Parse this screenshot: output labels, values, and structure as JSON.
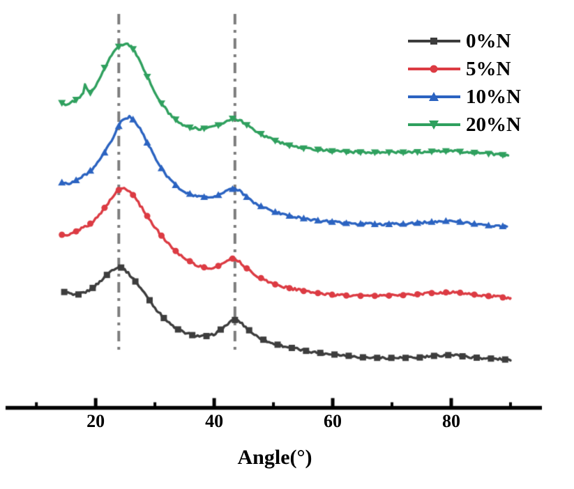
{
  "chart_data": {
    "type": "line",
    "title": "",
    "xlabel": "Angle(°)",
    "ylabel": "",
    "xlim": [
      4.8,
      95.3
    ],
    "ylim": [
      0,
      100
    ],
    "grid": false,
    "y_axis_visible": false,
    "background_color": "#ffffff",
    "axis_color": "#000000",
    "x_axis": {
      "major_ticks": [
        20,
        40,
        60,
        80
      ],
      "major_tick_labels": [
        "20",
        "40",
        "60",
        "80"
      ],
      "minor_ticks": [
        10,
        30,
        50,
        70,
        90
      ]
    },
    "reference_lines": [
      {
        "x": 23.9,
        "y_from": 14,
        "y_to": 100,
        "style": "dash-dot",
        "color": "#7d7d7d"
      },
      {
        "x": 43.5,
        "y_from": 14,
        "y_to": 100,
        "style": "dash-dot",
        "color": "#7d7d7d"
      }
    ],
    "legend": {
      "position": "upper-right",
      "entries": [
        "0%N",
        "5%N",
        "10%N",
        "20%N"
      ]
    },
    "noise_amplitude": 0.3,
    "marker_interval_deg": 2.4,
    "series": [
      {
        "name": "0%N",
        "color": "#3d3d3d",
        "marker": "square",
        "points": [
          [
            14.7,
            29.1
          ],
          [
            15.5,
            28.8
          ],
          [
            16.4,
            28.2
          ],
          [
            17.0,
            28.4
          ],
          [
            17.6,
            28.8
          ],
          [
            18.4,
            29.1
          ],
          [
            19.4,
            30.0
          ],
          [
            20.4,
            31.3
          ],
          [
            21.6,
            33.0
          ],
          [
            22.6,
            34.5
          ],
          [
            23.4,
            35.3
          ],
          [
            24.1,
            35.5
          ],
          [
            24.9,
            34.8
          ],
          [
            25.8,
            33.4
          ],
          [
            26.8,
            31.6
          ],
          [
            27.8,
            29.7
          ],
          [
            29.0,
            27.2
          ],
          [
            30.2,
            24.7
          ],
          [
            31.4,
            22.6
          ],
          [
            32.5,
            21.0
          ],
          [
            33.7,
            19.7
          ],
          [
            34.9,
            18.8
          ],
          [
            36.3,
            18.1
          ],
          [
            37.8,
            17.8
          ],
          [
            39.3,
            17.9
          ],
          [
            40.4,
            18.7
          ],
          [
            41.6,
            20.1
          ],
          [
            42.6,
            21.3
          ],
          [
            43.4,
            22.0
          ],
          [
            44.2,
            21.7
          ],
          [
            45.1,
            20.4
          ],
          [
            46.3,
            18.8
          ],
          [
            47.6,
            17.4
          ],
          [
            49.4,
            16.2
          ],
          [
            51.1,
            15.5
          ],
          [
            53.5,
            14.7
          ],
          [
            55.8,
            14.0
          ],
          [
            58.2,
            13.5
          ],
          [
            60.6,
            13.1
          ],
          [
            62.9,
            12.8
          ],
          [
            65.3,
            12.4
          ],
          [
            67.6,
            12.3
          ],
          [
            70.0,
            12.3
          ],
          [
            72.3,
            12.3
          ],
          [
            74.7,
            12.4
          ],
          [
            77.0,
            12.8
          ],
          [
            79.4,
            13.0
          ],
          [
            80.6,
            13.0
          ],
          [
            82.3,
            12.6
          ],
          [
            84.7,
            12.3
          ],
          [
            87.0,
            12.1
          ],
          [
            89.0,
            11.9
          ],
          [
            90.0,
            11.7
          ]
        ]
      },
      {
        "name": "5%N",
        "color": "#dc3b43",
        "marker": "circle",
        "points": [
          [
            14.3,
            43.7
          ],
          [
            15.1,
            43.3
          ],
          [
            15.9,
            43.9
          ],
          [
            17.0,
            44.8
          ],
          [
            17.8,
            45.5
          ],
          [
            18.8,
            46.2
          ],
          [
            19.7,
            47.2
          ],
          [
            20.8,
            49.0
          ],
          [
            21.7,
            51.0
          ],
          [
            22.6,
            52.8
          ],
          [
            23.4,
            54.4
          ],
          [
            24.1,
            55.4
          ],
          [
            24.9,
            55.6
          ],
          [
            25.7,
            54.9
          ],
          [
            26.6,
            53.3
          ],
          [
            27.5,
            51.2
          ],
          [
            28.6,
            48.7
          ],
          [
            29.6,
            46.4
          ],
          [
            30.8,
            44.0
          ],
          [
            32.0,
            41.9
          ],
          [
            33.1,
            40.1
          ],
          [
            34.3,
            38.5
          ],
          [
            35.5,
            37.3
          ],
          [
            36.7,
            36.2
          ],
          [
            37.8,
            35.5
          ],
          [
            39.0,
            35.2
          ],
          [
            40.2,
            35.3
          ],
          [
            41.1,
            36.1
          ],
          [
            42.1,
            37.1
          ],
          [
            42.8,
            37.7
          ],
          [
            43.5,
            37.5
          ],
          [
            44.4,
            36.6
          ],
          [
            45.6,
            35.0
          ],
          [
            47.0,
            33.4
          ],
          [
            48.7,
            32.0
          ],
          [
            50.5,
            30.9
          ],
          [
            52.9,
            30.0
          ],
          [
            55.2,
            29.3
          ],
          [
            57.6,
            28.8
          ],
          [
            59.9,
            28.4
          ],
          [
            62.3,
            28.2
          ],
          [
            64.6,
            28.1
          ],
          [
            67.6,
            28.1
          ],
          [
            70.5,
            28.2
          ],
          [
            73.5,
            28.4
          ],
          [
            76.4,
            28.8
          ],
          [
            79.4,
            29.0
          ],
          [
            81.1,
            29.0
          ],
          [
            82.9,
            28.6
          ],
          [
            85.3,
            28.2
          ],
          [
            87.6,
            27.9
          ],
          [
            90.0,
            27.5
          ]
        ]
      },
      {
        "name": "10%N",
        "color": "#2b63c1",
        "marker": "triangle-up",
        "points": [
          [
            14.3,
            57.0
          ],
          [
            15.2,
            56.7
          ],
          [
            16.2,
            57.2
          ],
          [
            17.1,
            57.9
          ],
          [
            18.1,
            58.8
          ],
          [
            19.0,
            59.9
          ],
          [
            20.0,
            61.3
          ],
          [
            20.9,
            63.1
          ],
          [
            21.8,
            65.4
          ],
          [
            22.8,
            68.0
          ],
          [
            23.6,
            70.5
          ],
          [
            24.3,
            72.6
          ],
          [
            25.0,
            73.5
          ],
          [
            25.7,
            73.7
          ],
          [
            26.4,
            73.0
          ],
          [
            27.3,
            71.2
          ],
          [
            28.2,
            68.6
          ],
          [
            29.3,
            65.5
          ],
          [
            30.3,
            62.5
          ],
          [
            31.5,
            59.7
          ],
          [
            32.7,
            57.5
          ],
          [
            33.8,
            55.9
          ],
          [
            35.0,
            54.7
          ],
          [
            36.4,
            53.8
          ],
          [
            37.8,
            53.3
          ],
          [
            39.3,
            53.3
          ],
          [
            40.4,
            53.6
          ],
          [
            41.6,
            54.5
          ],
          [
            42.6,
            55.2
          ],
          [
            43.3,
            55.4
          ],
          [
            44.1,
            55.1
          ],
          [
            45.1,
            53.8
          ],
          [
            46.4,
            52.2
          ],
          [
            48.1,
            50.8
          ],
          [
            49.8,
            49.7
          ],
          [
            52.2,
            48.7
          ],
          [
            54.5,
            48.0
          ],
          [
            56.9,
            47.4
          ],
          [
            59.2,
            47.1
          ],
          [
            61.6,
            46.7
          ],
          [
            63.9,
            46.5
          ],
          [
            66.9,
            46.4
          ],
          [
            69.9,
            46.4
          ],
          [
            72.8,
            46.5
          ],
          [
            75.8,
            46.9
          ],
          [
            78.7,
            47.2
          ],
          [
            80.2,
            47.2
          ],
          [
            82.0,
            46.9
          ],
          [
            84.3,
            46.4
          ],
          [
            86.7,
            46.0
          ],
          [
            89.4,
            45.8
          ]
        ]
      },
      {
        "name": "20%N",
        "color": "#2fa05e",
        "marker": "triangle-down",
        "points": [
          [
            14.3,
            77.3
          ],
          [
            15.1,
            76.9
          ],
          [
            15.9,
            77.4
          ],
          [
            16.8,
            78.2
          ],
          [
            17.5,
            78.9
          ],
          [
            18.0,
            79.9
          ],
          [
            18.2,
            82.2
          ],
          [
            18.6,
            80.3
          ],
          [
            19.1,
            79.9
          ],
          [
            19.9,
            81.3
          ],
          [
            20.6,
            83.5
          ],
          [
            21.4,
            86.0
          ],
          [
            22.2,
            88.3
          ],
          [
            23.0,
            90.2
          ],
          [
            23.7,
            91.5
          ],
          [
            24.6,
            92.2
          ],
          [
            25.3,
            92.4
          ],
          [
            26.0,
            91.7
          ],
          [
            26.8,
            89.9
          ],
          [
            27.7,
            87.0
          ],
          [
            28.8,
            83.7
          ],
          [
            29.8,
            80.5
          ],
          [
            31.0,
            77.4
          ],
          [
            32.2,
            75.0
          ],
          [
            33.4,
            73.2
          ],
          [
            34.6,
            71.9
          ],
          [
            36.0,
            71.0
          ],
          [
            37.5,
            70.7
          ],
          [
            39.0,
            70.9
          ],
          [
            40.4,
            71.4
          ],
          [
            41.6,
            72.3
          ],
          [
            42.7,
            73.2
          ],
          [
            43.5,
            73.4
          ],
          [
            44.4,
            72.8
          ],
          [
            45.6,
            71.6
          ],
          [
            47.0,
            70.2
          ],
          [
            48.7,
            68.7
          ],
          [
            50.6,
            67.5
          ],
          [
            52.9,
            66.4
          ],
          [
            55.2,
            65.7
          ],
          [
            57.6,
            65.4
          ],
          [
            59.9,
            65.0
          ],
          [
            62.9,
            64.8
          ],
          [
            65.8,
            64.7
          ],
          [
            68.8,
            64.7
          ],
          [
            71.7,
            64.7
          ],
          [
            74.7,
            64.8
          ],
          [
            77.6,
            65.0
          ],
          [
            80.0,
            65.0
          ],
          [
            82.3,
            64.8
          ],
          [
            84.7,
            64.5
          ],
          [
            87.0,
            64.3
          ],
          [
            89.6,
            63.9
          ]
        ]
      }
    ]
  }
}
